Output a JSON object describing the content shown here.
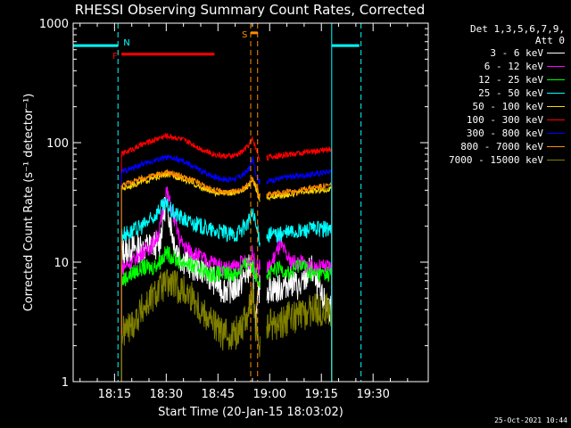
{
  "chart_data": {
    "type": "line",
    "title": "RHESSI Observing Summary Count Rates, Corrected",
    "xlabel": "Start Time (20-Jan-15 18:03:02)",
    "ylabel": "Corrected Count Rate (s⁻¹ detector⁻¹)",
    "yscale": "log",
    "ylim": [
      1,
      1000
    ],
    "xlim_minutes_after_18h": [
      3,
      46
    ],
    "x_ticks": [
      {
        "label": "18:15",
        "min": 15
      },
      {
        "label": "18:30",
        "min": 30
      },
      {
        "label": "18:45",
        "min": 45
      },
      {
        "label": "19:00",
        "min": 60
      },
      {
        "label": "19:15",
        "min": 75
      },
      {
        "label": "19:30",
        "min": 90
      }
    ],
    "y_ticks": [
      {
        "label": "1",
        "value": 1
      },
      {
        "label": "10",
        "value": 10
      },
      {
        "label": "100",
        "value": 100
      },
      {
        "label": "1000",
        "value": 1000
      }
    ],
    "legend_header": [
      "Det 1,3,5,6,7,9,",
      "Att 0"
    ],
    "series": [
      {
        "name": "3 - 6 keV",
        "color": "#ffffff",
        "x": [
          17,
          20,
          23,
          26,
          28,
          30,
          32,
          34,
          36,
          38,
          40,
          42,
          44,
          46,
          48,
          50,
          52,
          54,
          55,
          56,
          57,
          58,
          60,
          63,
          66,
          69,
          72,
          75,
          78
        ],
        "y": [
          12,
          13,
          13,
          14,
          14,
          35,
          16,
          11,
          10,
          9,
          9,
          8,
          7,
          6,
          6,
          6,
          7,
          9,
          8,
          3,
          6,
          6,
          6,
          6,
          7,
          6,
          9,
          5,
          4
        ]
      },
      {
        "name": "6 - 12 keV",
        "color": "#ff00ff",
        "x": [
          17,
          20,
          23,
          26,
          28,
          30,
          32,
          34,
          36,
          38,
          40,
          42,
          44,
          46,
          48,
          50,
          52,
          54,
          55,
          56,
          57,
          58,
          60,
          63,
          66,
          69,
          72,
          75,
          78
        ],
        "y": [
          9,
          10,
          12,
          14,
          18,
          40,
          25,
          15,
          13,
          12,
          11,
          10,
          10,
          9,
          9,
          9,
          10,
          10,
          12,
          9,
          9,
          9,
          9,
          14,
          10,
          10,
          9,
          9,
          9
        ]
      },
      {
        "name": "12 - 25 keV",
        "color": "#00ff00",
        "x": [
          17,
          20,
          23,
          26,
          28,
          30,
          32,
          34,
          36,
          38,
          40,
          42,
          44,
          46,
          48,
          50,
          52,
          54,
          55,
          56,
          57,
          58,
          60,
          63,
          66,
          69,
          72,
          75,
          78
        ],
        "y": [
          7,
          8,
          9,
          9,
          10,
          12,
          11,
          10,
          10,
          9,
          9,
          8,
          8,
          8,
          8,
          8,
          9,
          10,
          9,
          8,
          7,
          8,
          8,
          9,
          8,
          10,
          8,
          8,
          8
        ]
      },
      {
        "name": "25 - 50 keV",
        "color": "#00ffff",
        "x": [
          17,
          20,
          23,
          26,
          28,
          30,
          32,
          34,
          36,
          38,
          40,
          42,
          44,
          46,
          48,
          50,
          52,
          54,
          55,
          56,
          57,
          58,
          60,
          63,
          66,
          69,
          72,
          75,
          78
        ],
        "y": [
          17,
          18,
          20,
          23,
          28,
          30,
          26,
          24,
          22,
          21,
          20,
          19,
          18,
          18,
          17,
          17,
          19,
          22,
          26,
          20,
          16,
          16,
          17,
          17,
          18,
          18,
          19,
          19,
          19
        ]
      },
      {
        "name": "50 - 100 keV",
        "color": "#ffd700",
        "x": [
          17,
          20,
          23,
          26,
          28,
          30,
          32,
          34,
          36,
          38,
          40,
          42,
          44,
          46,
          48,
          50,
          52,
          54,
          55,
          56,
          57,
          58,
          60,
          63,
          66,
          69,
          72,
          75,
          78
        ],
        "y": [
          41,
          44,
          47,
          50,
          52,
          54,
          53,
          51,
          48,
          45,
          42,
          40,
          38,
          38,
          38,
          38,
          40,
          44,
          48,
          42,
          34,
          34,
          35,
          36,
          37,
          38,
          39,
          40,
          41
        ]
      },
      {
        "name": "100 - 300 keV",
        "color": "#ff0000",
        "x": [
          17,
          20,
          23,
          26,
          28,
          30,
          32,
          34,
          36,
          38,
          40,
          42,
          44,
          46,
          48,
          50,
          52,
          54,
          55,
          56,
          57,
          58,
          60,
          63,
          66,
          69,
          72,
          75,
          78
        ],
        "y": [
          80,
          88,
          96,
          104,
          110,
          114,
          112,
          108,
          102,
          96,
          89,
          84,
          80,
          78,
          77,
          78,
          84,
          96,
          108,
          90,
          74,
          74,
          76,
          78,
          80,
          82,
          84,
          86,
          88
        ]
      },
      {
        "name": "300 - 800 keV",
        "color": "#0000ff",
        "x": [
          17,
          20,
          23,
          26,
          28,
          30,
          32,
          34,
          36,
          38,
          40,
          42,
          44,
          46,
          48,
          50,
          52,
          54,
          55,
          56,
          57,
          58,
          60,
          63,
          66,
          69,
          72,
          75,
          78
        ],
        "y": [
          57,
          61,
          66,
          70,
          73,
          75,
          74,
          71,
          67,
          63,
          58,
          55,
          52,
          50,
          49,
          50,
          53,
          60,
          74,
          56,
          47,
          47,
          48,
          50,
          52,
          53,
          54,
          56,
          58
        ]
      },
      {
        "name": "800 - 7000 keV",
        "color": "#ff8c00",
        "x": [
          17,
          20,
          23,
          26,
          28,
          30,
          32,
          34,
          36,
          38,
          40,
          42,
          44,
          46,
          48,
          50,
          52,
          54,
          55,
          56,
          57,
          58,
          60,
          63,
          66,
          69,
          72,
          75,
          78
        ],
        "y": [
          44,
          47,
          50,
          53,
          55,
          56,
          55,
          53,
          50,
          48,
          45,
          42,
          40,
          39,
          38,
          39,
          41,
          45,
          50,
          44,
          36,
          36,
          37,
          38,
          39,
          40,
          42,
          43,
          44
        ]
      },
      {
        "name": "7000 - 15000 keV",
        "color": "#808000",
        "x": [
          17,
          20,
          23,
          26,
          28,
          30,
          32,
          34,
          36,
          38,
          40,
          42,
          44,
          46,
          48,
          50,
          52,
          54,
          55,
          56,
          57,
          58,
          60,
          63,
          66,
          69,
          72,
          75,
          78
        ],
        "y": [
          2.5,
          3,
          4,
          5,
          6,
          6.5,
          6.5,
          6,
          5.5,
          5,
          4,
          3.5,
          3,
          2.5,
          2.5,
          2.5,
          3,
          4,
          5,
          3,
          2,
          2,
          3,
          3,
          3.5,
          3.5,
          4,
          4,
          4
        ]
      }
    ],
    "bars": [
      {
        "label": "N",
        "color": "#00ffff",
        "x0": 3,
        "x1": 16,
        "y": 650
      },
      {
        "label": "",
        "color": "#00ffff",
        "x0": 78,
        "x1": 86,
        "y": 650
      },
      {
        "label": "F",
        "color": "#ff0000",
        "x0": 17,
        "x1": 44,
        "y": 550
      },
      {
        "label": "S",
        "color": "#ff8c00",
        "x0": 54.5,
        "x1": 56.5,
        "y": 830
      }
    ],
    "vlines": [
      {
        "min": 16,
        "color": "#00ffff",
        "style": "dashed"
      },
      {
        "min": 78,
        "color": "#00ffff",
        "style": "solid"
      },
      {
        "min": 86.5,
        "color": "#00ffff",
        "style": "dashed"
      },
      {
        "min": 54.5,
        "color": "#ff8c00",
        "style": "dashed"
      },
      {
        "min": 56.5,
        "color": "#ff8c00",
        "style": "dashed"
      }
    ]
  },
  "timestamp": "25-Oct-2021 10:44"
}
